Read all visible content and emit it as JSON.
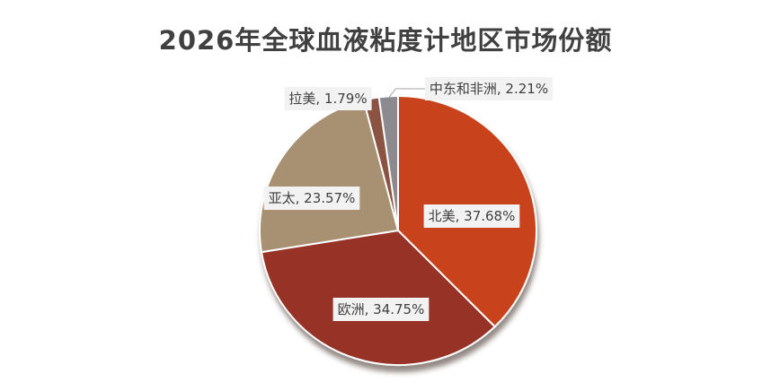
{
  "chart_data": {
    "type": "pie",
    "title": "2026年全球血液粘度计地区市场份额",
    "slices": [
      {
        "name": "北美",
        "value": 37.68,
        "label": "北美, 37.68%",
        "color": "#c8421a"
      },
      {
        "name": "欧洲",
        "value": 34.75,
        "label": "欧洲, 34.75%",
        "color": "#963026"
      },
      {
        "name": "亚太",
        "value": 23.57,
        "label": "亚太, 23.57%",
        "color": "#a89172"
      },
      {
        "name": "拉美",
        "value": 1.79,
        "label": "拉美, 1.79%",
        "color": "#8a5243"
      },
      {
        "name": "中东和非洲",
        "value": 2.21,
        "label": "中东和非洲, 2.21%",
        "color": "#8c8a8e"
      }
    ],
    "legend": "none",
    "unit": "%"
  }
}
